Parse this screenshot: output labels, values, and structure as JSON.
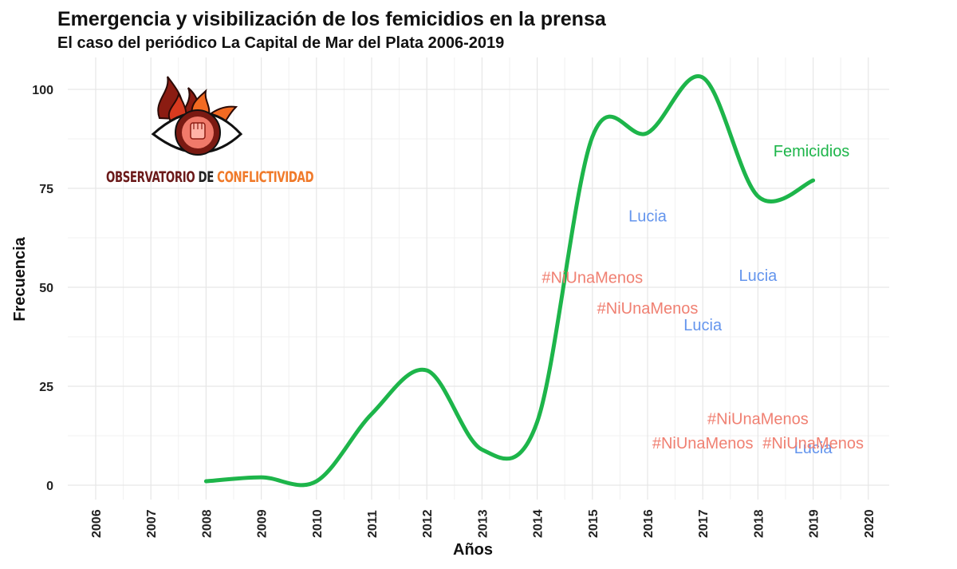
{
  "title": "Emergencia y visibilización de los femicidios en la prensa",
  "subtitle": "El caso del periódico La Capital de Mar del Plata 2006-2019",
  "logo": {
    "word1": "OBSERVATORIO",
    "word2": "DE",
    "word3": "CONFLICTIVIDAD",
    "icon": "eye-flame-fist-icon"
  },
  "colors": {
    "femicidios": "#1db54a",
    "niunamenos": "#f08072",
    "lucia": "#6495ed"
  },
  "chart_data": {
    "type": "line",
    "xlabel": "Años",
    "ylabel": "Frecuencia",
    "xlim": [
      2005.5,
      2020.4
    ],
    "ylim": [
      -5,
      110
    ],
    "xticks": [
      2006,
      2007,
      2008,
      2009,
      2010,
      2011,
      2012,
      2013,
      2014,
      2015,
      2016,
      2017,
      2018,
      2019,
      2020
    ],
    "xtick_labels": [
      "2006",
      "2007",
      "2008",
      "2009",
      "2010",
      "2011",
      "2012",
      "2013",
      "2014",
      "2015",
      "2016",
      "2017",
      "2018",
      "2019",
      "2020"
    ],
    "yticks": [
      0,
      25,
      50,
      75,
      100
    ],
    "ytick_labels": [
      "0",
      "25",
      "50",
      "75",
      "100"
    ],
    "grid": true,
    "series": [
      {
        "name": "Femicidios",
        "color": "#1db54a",
        "x": [
          2008,
          2009,
          2010,
          2011,
          2012,
          2013,
          2014,
          2015,
          2016,
          2017,
          2018,
          2019
        ],
        "values": [
          1,
          2,
          1,
          18,
          29,
          9,
          16,
          88,
          89,
          103,
          73,
          77
        ]
      }
    ],
    "annotations": [
      {
        "text": "Femicidios",
        "x": 2018.97,
        "y": 84.5,
        "color": "#1db54a"
      },
      {
        "text": "Lucia",
        "x": 2016,
        "y": 68,
        "color": "#6495ed"
      },
      {
        "text": "Lucia",
        "x": 2018,
        "y": 53,
        "color": "#6495ed"
      },
      {
        "text": "Lucia",
        "x": 2017,
        "y": 40.5,
        "color": "#6495ed"
      },
      {
        "text": "Lucia",
        "x": 2019,
        "y": 9.5,
        "color": "#6495ed"
      },
      {
        "text": "#NiUnaMenos",
        "x": 2015,
        "y": 52.5,
        "color": "#f08072"
      },
      {
        "text": "#NiUnaMenos",
        "x": 2016,
        "y": 44.8,
        "color": "#f08072"
      },
      {
        "text": "#NiUnaMenos",
        "x": 2018,
        "y": 16.8,
        "color": "#f08072"
      },
      {
        "text": "#NiUnaMenos",
        "x": 2017,
        "y": 10.7,
        "color": "#f08072"
      },
      {
        "text": "#NiUnaMenos",
        "x": 2019,
        "y": 10.7,
        "color": "#f08072"
      }
    ]
  }
}
